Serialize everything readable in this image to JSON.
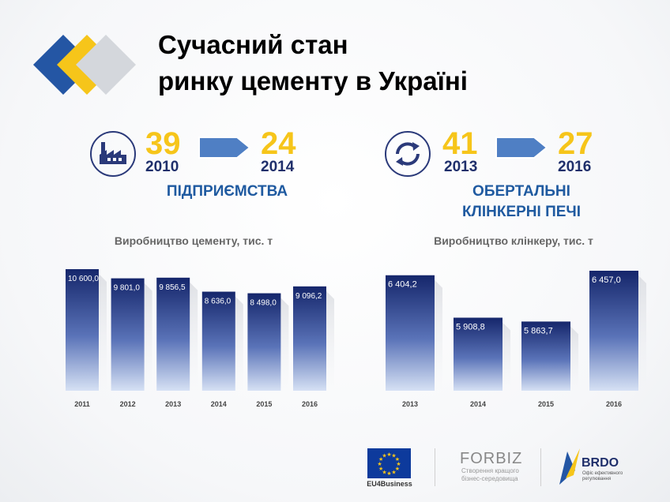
{
  "title_line1": "Сучасний стан",
  "title_line2": "ринку цементу в Україні",
  "colors": {
    "yellow": "#f6c51a",
    "navy": "#1f2f6b",
    "blue": "#1f5aa0",
    "arrow": "#4f7fc4"
  },
  "left_stat": {
    "icon": "factory-icon",
    "from_value": "39",
    "from_year": "2010",
    "to_value": "24",
    "to_year": "2014",
    "caption": "ПІДПРИЄМСТВА"
  },
  "right_stat": {
    "icon": "cycle-arrows-icon",
    "from_value": "41",
    "from_year": "2013",
    "to_value": "27",
    "to_year": "2016",
    "caption_line1": "ОБЕРТАЛЬНІ",
    "caption_line2": "КЛІНКЕРНІ ПЕЧІ"
  },
  "footer": {
    "eu_label": "EU4Business",
    "forbiz_name": "FORBIZ",
    "forbiz_tagline1": "Створення кращого",
    "forbiz_tagline2": "бізнес-середовища",
    "brdo_name": "BRDO",
    "brdo_tagline1": "Офіс ефективного",
    "brdo_tagline2": "регулювання"
  },
  "chart_data": [
    {
      "type": "bar",
      "title": "Виробництво цементу, тис. т",
      "categories": [
        "2011",
        "2012",
        "2013",
        "2014",
        "2015",
        "2016"
      ],
      "values": [
        10600.0,
        9801.0,
        9856.5,
        8636.0,
        8498.0,
        9096.2
      ],
      "labels": [
        "10 600,0",
        "9 801,0",
        "9 856,5",
        "8 636,0",
        "8 498,0",
        "9 096,2"
      ],
      "ylim": [
        0,
        10600
      ],
      "grid": false,
      "legend": "none"
    },
    {
      "type": "bar",
      "title": "Виробництво клінкеру, тис. т",
      "categories": [
        "2013",
        "2014",
        "2015",
        "2016"
      ],
      "values": [
        6404.2,
        5908.8,
        5863.7,
        6457.0
      ],
      "labels": [
        "6 404,2",
        "5 908,8",
        "5 863,7",
        "6 457,0"
      ],
      "ylim": [
        5600,
        6457
      ],
      "grid": false,
      "legend": "none"
    }
  ]
}
